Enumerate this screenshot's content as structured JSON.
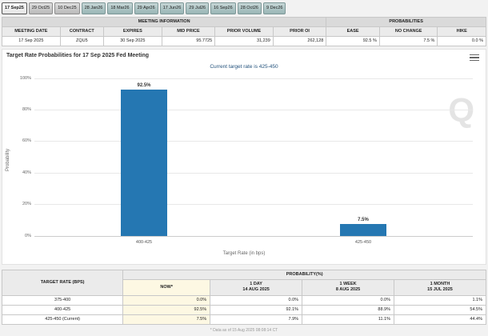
{
  "tabs": [
    {
      "label": "17 Sep25",
      "active": true,
      "variant": "gray"
    },
    {
      "label": "29 Oct25",
      "active": false,
      "variant": "gray"
    },
    {
      "label": "10 Dec25",
      "active": false,
      "variant": "gray"
    },
    {
      "label": "28 Jan26",
      "active": false,
      "variant": "teal"
    },
    {
      "label": "18 Mar26",
      "active": false,
      "variant": "teal"
    },
    {
      "label": "29 Apr26",
      "active": false,
      "variant": "teal"
    },
    {
      "label": "17 Jun26",
      "active": false,
      "variant": "teal"
    },
    {
      "label": "29 Jul26",
      "active": false,
      "variant": "teal"
    },
    {
      "label": "16 Sep26",
      "active": false,
      "variant": "teal"
    },
    {
      "label": "28 Oct26",
      "active": false,
      "variant": "teal"
    },
    {
      "label": "9 Dec26",
      "active": false,
      "variant": "teal"
    }
  ],
  "meeting_info": {
    "group_headers": [
      "MEETING INFORMATION",
      "PROBABILITIES"
    ],
    "columns": [
      "MEETING DATE",
      "CONTRACT",
      "EXPIRES",
      "MID PRICE",
      "PRIOR VOLUME",
      "PRIOR OI",
      "EASE",
      "NO CHANGE",
      "HIKE"
    ],
    "values": [
      "17 Sep 2025",
      "ZQU5",
      "30 Sep 2025",
      "95.7725",
      "31,239",
      "262,128",
      "92.5 %",
      "7.5 %",
      "0.0 %"
    ]
  },
  "chart": {
    "title": "Target Rate Probabilities for 17 Sep 2025 Fed Meeting",
    "subtitle": "Current target rate is 425-450",
    "watermark": "Q"
  },
  "chart_data": {
    "type": "bar",
    "categories": [
      "400-425",
      "425-450"
    ],
    "values": [
      92.5,
      7.5
    ],
    "labels": [
      "92.5%",
      "7.5%"
    ],
    "title": "Target Rate Probabilities for 17 Sep 2025 Fed Meeting",
    "subtitle": "Current target rate is 425-450",
    "xlabel": "Target Rate (in bps)",
    "ylabel": "Probability",
    "ylim": [
      0,
      100
    ],
    "yticks": [
      "0%",
      "20%",
      "40%",
      "60%",
      "80%",
      "100%"
    ],
    "grid": true,
    "bar_color": "#2577b2"
  },
  "prob_table": {
    "corner_header": "TARGET RATE (BPS)",
    "group_header": "PROBABILITY(%)",
    "columns": [
      {
        "l1": "NOW*",
        "l2": ""
      },
      {
        "l1": "1 DAY",
        "l2": "14 AUG 2025"
      },
      {
        "l1": "1 WEEK",
        "l2": "8 AUG 2025"
      },
      {
        "l1": "1 MONTH",
        "l2": "15 JUL 2025"
      }
    ],
    "rows": [
      {
        "rate": "375-400",
        "values": [
          "0.0%",
          "0.0%",
          "0.0%",
          "1.1%"
        ]
      },
      {
        "rate": "400-425",
        "values": [
          "92.5%",
          "92.1%",
          "88.9%",
          "54.5%"
        ]
      },
      {
        "rate": "425-450 (Current)",
        "values": [
          "7.5%",
          "7.9%",
          "11.1%",
          "44.4%"
        ]
      }
    ]
  },
  "footnote": "* Data as of 15 Aug 2025 08:08:14 CT"
}
